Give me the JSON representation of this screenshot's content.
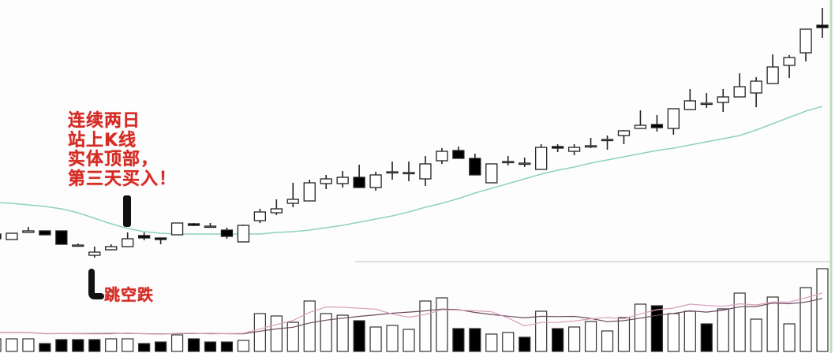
{
  "chart_data": {
    "type": "candlestick",
    "title": "",
    "xlabel": "",
    "ylabel": "",
    "grid": false,
    "colors": {
      "up": "#ffffff",
      "down": "#000000",
      "outline": "#222222",
      "ma_line": "#8fd1c0",
      "volume_ma_1": "#6b4a5e",
      "volume_ma_2": "#d9a0b8",
      "annotation": "#d42a22",
      "border": "#b9dfb9"
    },
    "candles": [
      [
        43,
        43,
        37,
        37
      ],
      [
        36,
        44,
        36,
        44
      ],
      [
        45,
        52,
        45,
        47
      ],
      [
        47,
        47,
        42,
        42
      ],
      [
        47,
        47,
        30,
        30
      ],
      [
        29,
        31,
        28,
        29
      ],
      [
        16,
        27,
        13,
        20
      ],
      [
        23,
        30,
        23,
        27
      ],
      [
        27,
        45,
        27,
        37
      ],
      [
        41,
        45,
        35,
        38
      ],
      [
        38,
        38,
        30,
        36
      ],
      [
        42,
        57,
        42,
        57
      ],
      [
        56,
        57,
        53,
        54
      ],
      [
        53,
        57,
        53,
        53
      ],
      [
        48,
        51,
        37,
        40
      ],
      [
        33,
        55,
        33,
        54
      ],
      [
        60,
        75,
        57,
        71
      ],
      [
        70,
        87,
        67,
        75
      ],
      [
        82,
        108,
        77,
        87
      ],
      [
        85,
        112,
        85,
        108
      ],
      [
        107,
        118,
        100,
        113
      ],
      [
        107,
        123,
        102,
        115
      ],
      [
        115,
        131,
        102,
        102
      ],
      [
        102,
        122,
        98,
        118
      ],
      [
        122,
        135,
        112,
        122
      ],
      [
        121,
        135,
        110,
        121
      ],
      [
        113,
        142,
        104,
        132
      ],
      [
        136,
        152,
        132,
        148
      ],
      [
        149,
        154,
        139,
        139
      ],
      [
        139,
        145,
        118,
        118
      ],
      [
        108,
        132,
        108,
        132
      ],
      [
        135,
        142,
        130,
        135
      ],
      [
        133,
        140,
        128,
        133
      ],
      [
        125,
        157,
        125,
        153
      ],
      [
        154,
        157,
        147,
        152
      ],
      [
        148,
        157,
        143,
        153
      ],
      [
        155,
        165,
        152,
        155
      ],
      [
        163,
        168,
        150,
        163
      ],
      [
        168,
        175,
        157,
        174
      ],
      [
        177,
        200,
        177,
        181
      ],
      [
        182,
        194,
        173,
        178
      ],
      [
        177,
        202,
        169,
        202
      ],
      [
        201,
        227,
        201,
        212
      ],
      [
        209,
        222,
        203,
        209
      ],
      [
        210,
        227,
        198,
        217
      ],
      [
        217,
        247,
        217,
        230
      ],
      [
        222,
        242,
        204,
        237
      ],
      [
        234,
        271,
        234,
        255
      ],
      [
        257,
        270,
        241,
        267
      ],
      [
        273,
        303,
        262,
        303
      ],
      [
        308,
        330,
        292,
        305
      ]
    ],
    "candle_fields": [
      "open",
      "high",
      "low",
      "close"
    ],
    "moving_average": [
      83,
      82,
      80,
      78,
      75,
      70,
      63,
      56,
      50,
      46,
      44,
      43,
      43,
      43,
      43,
      43,
      43,
      45,
      46,
      48,
      51,
      54,
      58,
      62,
      66,
      71,
      77,
      82,
      88,
      95,
      101,
      107,
      113,
      119,
      124,
      128,
      133,
      137,
      141,
      145,
      149,
      152,
      156,
      160,
      164,
      168,
      175,
      183,
      191,
      199,
      205
    ],
    "volume": [
      16,
      16,
      16,
      10,
      15,
      15,
      15,
      16,
      16,
      10,
      12,
      21,
      16,
      12,
      12,
      14,
      48,
      45,
      37,
      64,
      48,
      46,
      39,
      31,
      33,
      28,
      64,
      68,
      29,
      29,
      22,
      24,
      18,
      51,
      29,
      31,
      38,
      26,
      43,
      60,
      58,
      48,
      51,
      35,
      54,
      74,
      41,
      69,
      35,
      81,
      105
    ],
    "volume_up": [
      true,
      true,
      true,
      false,
      false,
      false,
      false,
      true,
      true,
      false,
      false,
      true,
      false,
      false,
      false,
      true,
      true,
      true,
      true,
      true,
      true,
      true,
      false,
      true,
      true,
      true,
      true,
      true,
      false,
      false,
      true,
      true,
      false,
      true,
      false,
      true,
      true,
      true,
      true,
      true,
      false,
      true,
      true,
      false,
      true,
      true,
      true,
      true,
      true,
      true,
      true
    ],
    "annotations": [
      {
        "lines": [
          "连续两日",
          "站上K线",
          "实体顶部，",
          "第三天买入！"
        ]
      },
      {
        "lines": [
          "跳空跌"
        ]
      }
    ]
  }
}
